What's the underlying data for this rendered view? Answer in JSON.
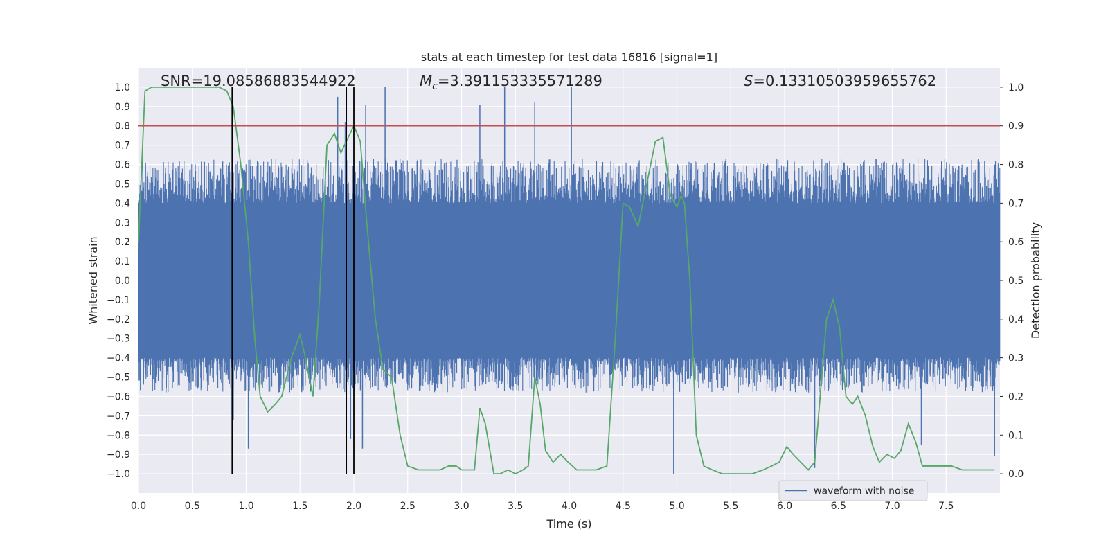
{
  "chart_data": {
    "type": "line",
    "title": "stats at each timestep for test data 16816 [signal=1]",
    "xlabel": "Time (s)",
    "ylabel": "Whitened strain",
    "y2label": "Detection probability",
    "xlim": [
      0.0,
      8.0
    ],
    "ylim": [
      -1.1,
      1.1
    ],
    "y2lim": [
      -0.05,
      1.05
    ],
    "xticks": [
      "0.0",
      "0.5",
      "1.0",
      "1.5",
      "2.0",
      "2.5",
      "3.0",
      "3.5",
      "4.0",
      "4.5",
      "5.0",
      "5.5",
      "6.0",
      "6.5",
      "7.0",
      "7.5"
    ],
    "xtick_values": [
      0,
      0.5,
      1,
      1.5,
      2,
      2.5,
      3,
      3.5,
      4,
      4.5,
      5,
      5.5,
      6,
      6.5,
      7,
      7.5
    ],
    "yticks": [
      "1.0",
      "0.9",
      "0.8",
      "0.7",
      "0.6",
      "0.5",
      "0.4",
      "0.3",
      "0.2",
      "0.1",
      "0.0",
      "−0.1",
      "−0.2",
      "−0.3",
      "−0.4",
      "−0.5",
      "−0.6",
      "−0.7",
      "−0.8",
      "−0.9",
      "−1.0"
    ],
    "ytick_values": [
      1,
      0.9,
      0.8,
      0.7,
      0.6,
      0.5,
      0.4,
      0.3,
      0.2,
      0.1,
      0,
      -0.1,
      -0.2,
      -0.3,
      -0.4,
      -0.5,
      -0.6,
      -0.7,
      -0.8,
      -0.9,
      -1
    ],
    "y2ticks": [
      "1.0",
      "0.9",
      "0.8",
      "0.7",
      "0.6",
      "0.5",
      "0.4",
      "0.3",
      "0.2",
      "0.1",
      "0.0"
    ],
    "y2tick_values": [
      1,
      0.9,
      0.8,
      0.7,
      0.6,
      0.5,
      0.4,
      0.3,
      0.2,
      0.1,
      0
    ],
    "annotations": {
      "snr": "SNR=19.08586883544922",
      "mc_label": "M",
      "mc_sub": "c",
      "mc_value": "=3.391153335571289",
      "s_label": "S",
      "s_value": "=0.13310503959655762"
    },
    "threshold": {
      "value": 0.9,
      "axis": "y2",
      "color": "#c44e52"
    },
    "event_lines": [
      0.87,
      1.93,
      2.0
    ],
    "legend": {
      "label": "waveform with noise",
      "position": "lower-right"
    },
    "series": [
      {
        "name": "waveform with noise",
        "axis": "y",
        "style": "dense-noise",
        "color": "#4c72b0",
        "core_amplitude": 0.4,
        "max_amplitude": 1.0,
        "peaks": [
          {
            "x": 0.04,
            "y": 0.68
          },
          {
            "x": 0.88,
            "y": -0.72
          },
          {
            "x": 1.02,
            "y": -0.87
          },
          {
            "x": 1.85,
            "y": 0.95
          },
          {
            "x": 1.92,
            "y": 0.82
          },
          {
            "x": 1.97,
            "y": -0.82
          },
          {
            "x": 2.08,
            "y": -0.87
          },
          {
            "x": 2.11,
            "y": 0.91
          },
          {
            "x": 2.29,
            "y": 1.0
          },
          {
            "x": 3.17,
            "y": 0.91
          },
          {
            "x": 3.4,
            "y": 1.0
          },
          {
            "x": 3.68,
            "y": 0.92
          },
          {
            "x": 4.02,
            "y": 1.0
          },
          {
            "x": 4.97,
            "y": -1.0
          },
          {
            "x": 6.28,
            "y": -0.97
          },
          {
            "x": 7.27,
            "y": -0.85
          },
          {
            "x": 7.95,
            "y": -0.91
          }
        ]
      },
      {
        "name": "detection probability",
        "axis": "y2",
        "color": "#55a868",
        "x": [
          0.0,
          0.06,
          0.12,
          0.2,
          0.3,
          0.4,
          0.5,
          0.6,
          0.7,
          0.75,
          0.82,
          0.88,
          0.95,
          1.02,
          1.08,
          1.13,
          1.2,
          1.27,
          1.33,
          1.42,
          1.5,
          1.55,
          1.62,
          1.68,
          1.75,
          1.82,
          1.88,
          1.93,
          2.0,
          2.06,
          2.12,
          2.2,
          2.27,
          2.35,
          2.43,
          2.5,
          2.6,
          2.7,
          2.8,
          2.88,
          2.95,
          3.0,
          3.05,
          3.12,
          3.17,
          3.22,
          3.3,
          3.36,
          3.43,
          3.5,
          3.57,
          3.62,
          3.68,
          3.73,
          3.78,
          3.85,
          3.92,
          3.99,
          4.07,
          4.15,
          4.25,
          4.35,
          4.43,
          4.5,
          4.56,
          4.64,
          4.72,
          4.8,
          4.87,
          4.94,
          5.0,
          5.04,
          5.07,
          5.12,
          5.18,
          5.25,
          5.33,
          5.42,
          5.52,
          5.6,
          5.7,
          5.8,
          5.88,
          5.95,
          6.02,
          6.08,
          6.15,
          6.22,
          6.28,
          6.33,
          6.39,
          6.45,
          6.51,
          6.57,
          6.63,
          6.68,
          6.75,
          6.82,
          6.88,
          6.95,
          7.02,
          7.08,
          7.15,
          7.22,
          7.28,
          7.35,
          7.45,
          7.55,
          7.65,
          7.75,
          7.85,
          7.95
        ],
        "y": [
          0.6,
          0.99,
          1.0,
          1.0,
          1.0,
          1.0,
          1.0,
          1.0,
          1.0,
          1.0,
          0.99,
          0.95,
          0.8,
          0.6,
          0.35,
          0.2,
          0.16,
          0.18,
          0.2,
          0.3,
          0.36,
          0.3,
          0.2,
          0.45,
          0.85,
          0.88,
          0.83,
          0.86,
          0.9,
          0.86,
          0.65,
          0.4,
          0.27,
          0.25,
          0.1,
          0.02,
          0.01,
          0.01,
          0.01,
          0.02,
          0.02,
          0.01,
          0.01,
          0.01,
          0.17,
          0.13,
          0.0,
          0.0,
          0.01,
          0.0,
          0.01,
          0.02,
          0.25,
          0.18,
          0.06,
          0.03,
          0.05,
          0.03,
          0.01,
          0.01,
          0.01,
          0.02,
          0.36,
          0.7,
          0.69,
          0.64,
          0.75,
          0.86,
          0.87,
          0.72,
          0.69,
          0.72,
          0.7,
          0.5,
          0.1,
          0.02,
          0.01,
          0.0,
          0.0,
          0.0,
          0.0,
          0.01,
          0.02,
          0.03,
          0.07,
          0.05,
          0.03,
          0.01,
          0.03,
          0.2,
          0.4,
          0.45,
          0.38,
          0.2,
          0.18,
          0.2,
          0.15,
          0.07,
          0.03,
          0.05,
          0.04,
          0.06,
          0.13,
          0.08,
          0.02,
          0.02,
          0.02,
          0.02,
          0.01,
          0.01,
          0.01,
          0.01
        ]
      }
    ]
  }
}
